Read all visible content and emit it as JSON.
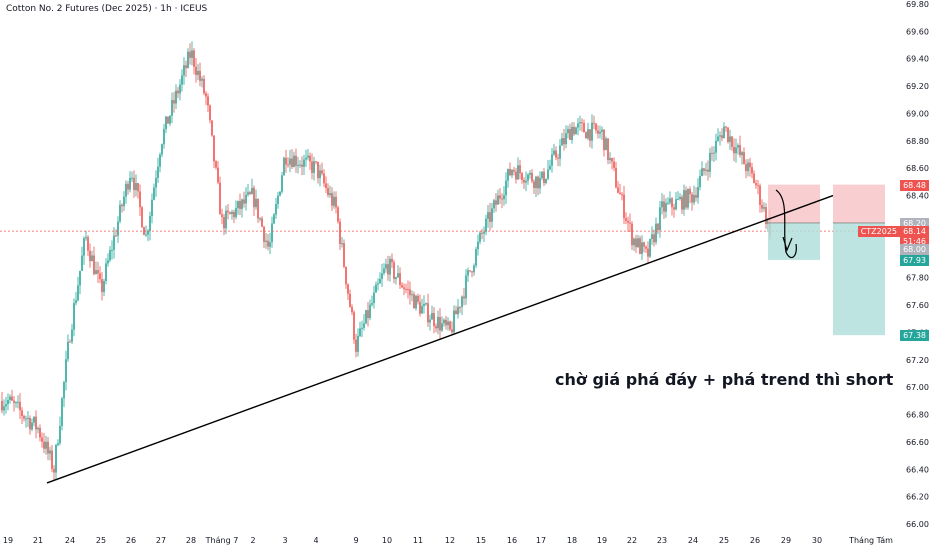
{
  "title": "Cotton No. 2 Futures (Dec 2025) · 1h · ICEUS",
  "annotation": "chờ giá phá đáy + phá trend thì short",
  "colors": {
    "up": "#26a69a",
    "down": "#ef5350",
    "trendline": "#000000",
    "stop_zone": "#f7c5c8",
    "target_zone": "#b2dfdb",
    "tag_red": "#ef5350",
    "tag_green": "#26a69a",
    "tag_grey": "#b0b3bb",
    "price_line": "#ef5350"
  },
  "price_tags": {
    "stop": "68.48",
    "entry": "68.20",
    "symbol": "CTZ2025",
    "last": "68.14",
    "countdown": "51:46",
    "entry_small": "68.00",
    "target_near": "67.93",
    "target_far": "67.38"
  },
  "chart_data": {
    "type": "candlestick",
    "ylim": [
      66.0,
      69.8
    ],
    "y_ticks": [
      "69.80",
      "69.60",
      "69.40",
      "69.20",
      "69.00",
      "68.80",
      "68.60",
      "68.40",
      "68.20",
      "68.00",
      "67.80",
      "67.60",
      "67.40",
      "67.20",
      "67.00",
      "66.80",
      "66.60",
      "66.40",
      "66.20",
      "66.00"
    ],
    "x_ticks": [
      "19",
      "21",
      "24",
      "25",
      "26",
      "27",
      "28",
      "Tháng 7",
      "2",
      "3",
      "4",
      "9",
      "10",
      "11",
      "12",
      "15",
      "16",
      "17",
      "18",
      "19",
      "22",
      "23",
      "24",
      "25",
      "26",
      "29",
      "30",
      "Tháng Tám"
    ],
    "price_path": [
      {
        "x": "19",
        "y": 66.9
      },
      {
        "x": "21",
        "y": 66.7
      },
      {
        "x": "21",
        "y": 66.4
      },
      {
        "x": "24",
        "y": 67.4
      },
      {
        "x": "24",
        "y": 68.1
      },
      {
        "x": "25",
        "y": 67.7
      },
      {
        "x": "26",
        "y": 68.6
      },
      {
        "x": "26",
        "y": 68.1
      },
      {
        "x": "27",
        "y": 68.8
      },
      {
        "x": "28",
        "y": 69.45
      },
      {
        "x": "28",
        "y": 69.1
      },
      {
        "x": "Tháng 7",
        "y": 68.2
      },
      {
        "x": "2",
        "y": 68.4
      },
      {
        "x": "2",
        "y": 68.0
      },
      {
        "x": "3",
        "y": 68.7
      },
      {
        "x": "4",
        "y": 68.6
      },
      {
        "x": "4",
        "y": 68.3
      },
      {
        "x": "9",
        "y": 67.3
      },
      {
        "x": "10",
        "y": 67.9
      },
      {
        "x": "11",
        "y": 67.6
      },
      {
        "x": "12",
        "y": 67.4
      },
      {
        "x": "15",
        "y": 68.1
      },
      {
        "x": "16",
        "y": 68.6
      },
      {
        "x": "17",
        "y": 68.5
      },
      {
        "x": "18",
        "y": 68.9
      },
      {
        "x": "19",
        "y": 68.85
      },
      {
        "x": "22",
        "y": 68.1
      },
      {
        "x": "22",
        "y": 67.95
      },
      {
        "x": "23",
        "y": 68.3
      },
      {
        "x": "24",
        "y": 68.4
      },
      {
        "x": "25",
        "y": 68.9
      },
      {
        "x": "26",
        "y": 68.5
      },
      {
        "x": "26",
        "y": 68.14
      }
    ],
    "trendline": {
      "from": {
        "x": "21",
        "y": 66.3
      },
      "to": {
        "x": "29",
        "y": 68.4
      }
    },
    "position": {
      "entry": 68.2,
      "stop": 68.48,
      "target_near": 67.93,
      "target_far": 67.38
    }
  }
}
